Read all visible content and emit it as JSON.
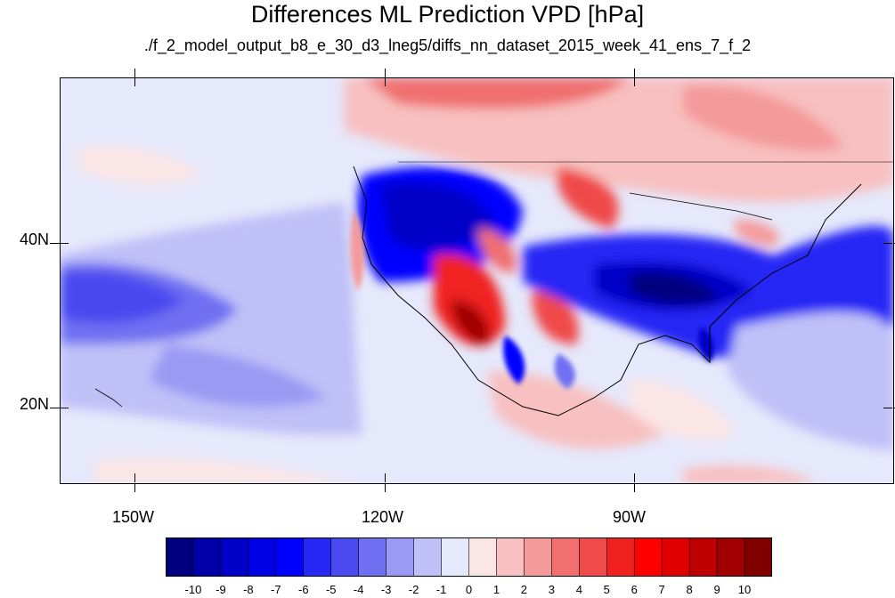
{
  "chart_data": {
    "type": "heatmap",
    "title": "Differences ML Prediction VPD [hPa]",
    "subtitle": "./f_2_model_output_b8_e_30_d3_lneg5/diffs_nn_dataset_2015_week_41_ens_7_f_2",
    "x_ticks": [
      {
        "label": "150W",
        "value": -150
      },
      {
        "label": "120W",
        "value": -120
      },
      {
        "label": "90W",
        "value": -90
      }
    ],
    "y_ticks": [
      {
        "label": "40N",
        "value": 40
      },
      {
        "label": "20N",
        "value": 20
      }
    ],
    "xlim": [
      -159,
      -59
    ],
    "ylim": [
      11,
      60
    ],
    "colorbar": {
      "levels": [
        "-10",
        "-9",
        "-8",
        "-7",
        "-6",
        "-5",
        "-4",
        "-3",
        "-2",
        "-1",
        "0",
        "1",
        "2",
        "3",
        "4",
        "5",
        "6",
        "7",
        "8",
        "9",
        "10"
      ],
      "colors": [
        "#00007f",
        "#0000a8",
        "#0000c8",
        "#0000e6",
        "#0000ff",
        "#2626f5",
        "#4a4af0",
        "#7070f2",
        "#9a9af4",
        "#c0c0f8",
        "#e6e8fb",
        "#fbe6e6",
        "#f8c0c0",
        "#f49a9a",
        "#f07070",
        "#f04a4a",
        "#f02020",
        "#ff0000",
        "#e00000",
        "#c00000",
        "#a00000",
        "#800000"
      ]
    }
  }
}
